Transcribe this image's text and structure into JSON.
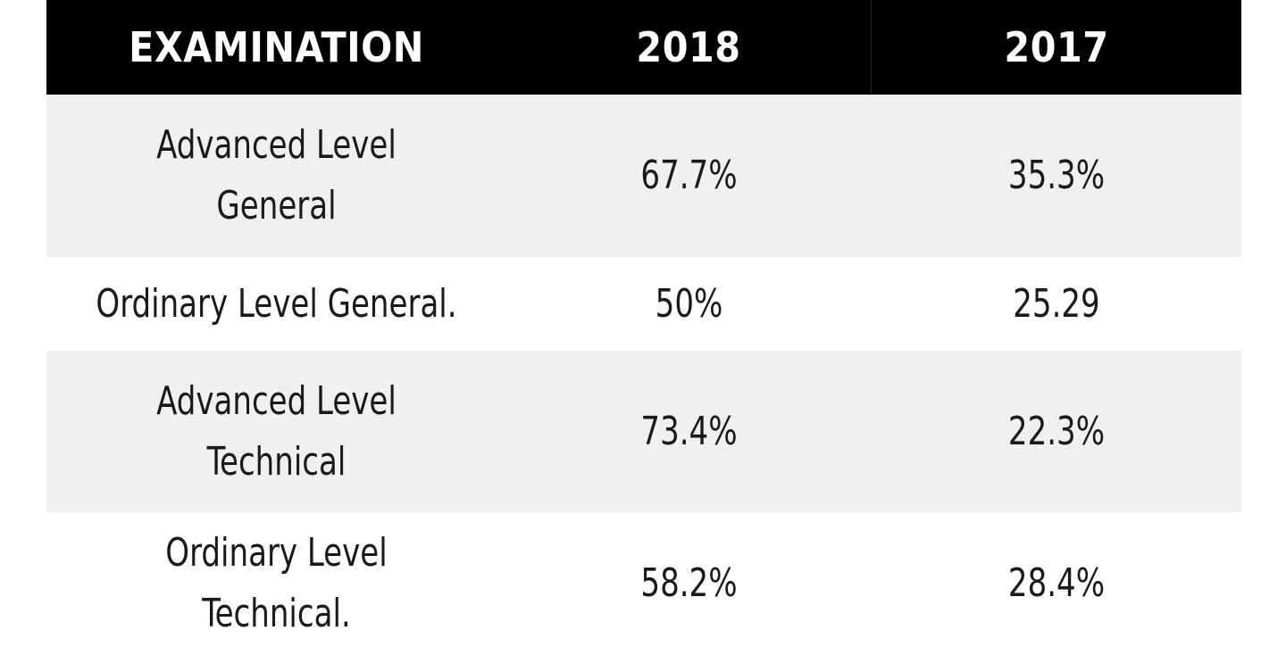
{
  "table": {
    "columns": [
      "EXAMINATION",
      "2018",
      "2017"
    ],
    "rows": [
      {
        "examination": "Advanced Level General",
        "y2018": "67.7%",
        "y2017": "35.3%"
      },
      {
        "examination": "Ordinary Level General.",
        "y2018": "50%",
        "y2017": "25.29"
      },
      {
        "examination": "Advanced Level Technical",
        "y2018": "73.4%",
        "y2017": "22.3%"
      },
      {
        "examination": "Ordinary Level Technical.",
        "y2018": "58.2%",
        "y2017": "28.4%"
      }
    ]
  },
  "colors": {
    "header_bg": "#000000",
    "header_text": "#ffffff",
    "shaded_row": "#f0f0f0",
    "plain_row": "#ffffff"
  }
}
